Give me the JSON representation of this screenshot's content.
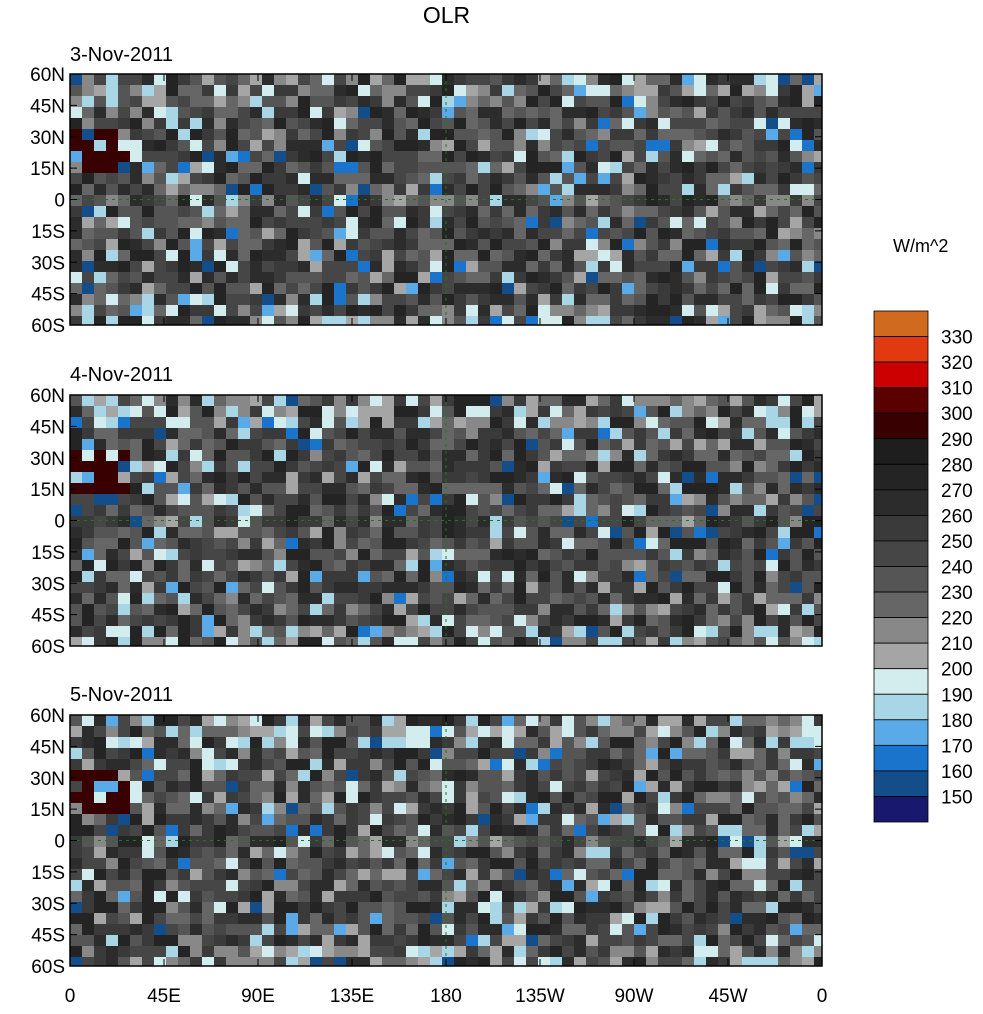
{
  "title": "OLR",
  "panels": [
    {
      "date": "3-Nov-2011"
    },
    {
      "date": "4-Nov-2011"
    },
    {
      "date": "5-Nov-2011"
    }
  ],
  "y_ticks": [
    "60N",
    "45N",
    "30N",
    "15N",
    "0",
    "15S",
    "30S",
    "45S",
    "60S"
  ],
  "x_ticks": [
    "0",
    "45E",
    "90E",
    "135E",
    "180",
    "135W",
    "90W",
    "45W",
    "0"
  ],
  "colorbar": {
    "units": "W/m^2",
    "labels": [
      "330",
      "320",
      "310",
      "300",
      "290",
      "280",
      "270",
      "260",
      "250",
      "240",
      "230",
      "220",
      "210",
      "200",
      "190",
      "180",
      "170",
      "160",
      "150"
    ],
    "colors": [
      "#cf6a1e",
      "#e23a10",
      "#cc0000",
      "#5a0000",
      "#380000",
      "#1e1e1e",
      "#242424",
      "#2c2c2c",
      "#3a3a3a",
      "#464646",
      "#555555",
      "#666666",
      "#888888",
      "#a5a5a5",
      "#d3ecee",
      "#a9d6e6",
      "#5aaae8",
      "#1a74cc",
      "#134d8a",
      "#18186e"
    ]
  },
  "coastline_color": "#1a7a1a"
}
